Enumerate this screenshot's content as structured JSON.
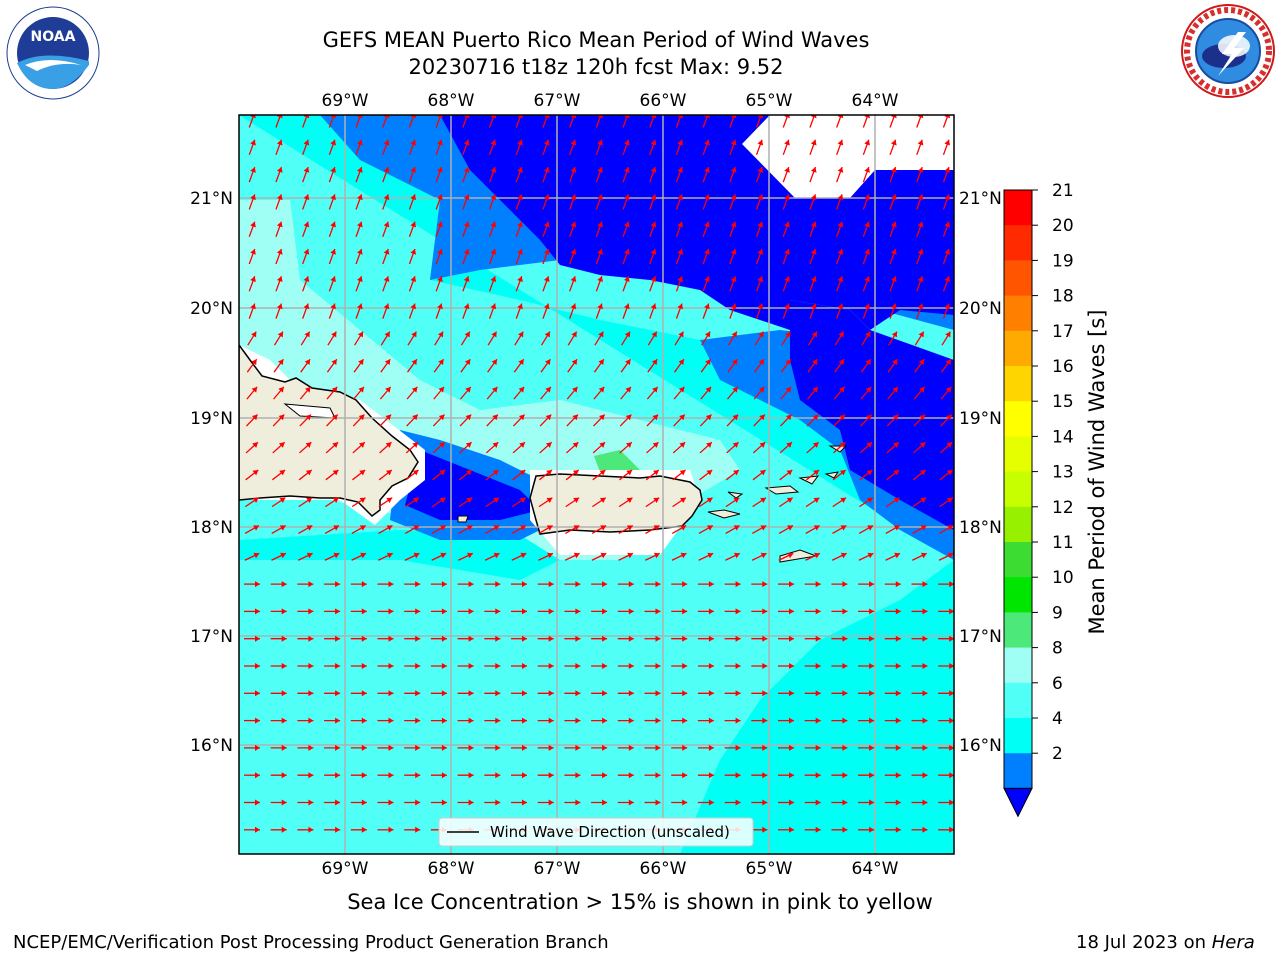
{
  "header": {
    "title_line1": "GEFS MEAN Puerto Rico Mean Period of Wind Waves",
    "title_line2": "20230716 t18z 120h fcst   Max: 9.52"
  },
  "logos": {
    "left_text": "NOAA",
    "right_text": "NATIONAL WEATHER SERVICE"
  },
  "map": {
    "lon_labels": [
      "69°W",
      "68°W",
      "67°W",
      "66°W",
      "65°W",
      "64°W"
    ],
    "lat_labels": [
      "21°N",
      "20°N",
      "19°N",
      "18°N",
      "17°N",
      "16°N"
    ],
    "legend_label": "Wind Wave Direction (unscaled)",
    "arrow_color": "#ff0000"
  },
  "colorbar": {
    "label": "Mean Period of Wind Waves [s]",
    "ticks": [
      "21",
      "20",
      "19",
      "18",
      "17",
      "16",
      "15",
      "14",
      "13",
      "12",
      "11",
      "10",
      "9",
      "8",
      "6",
      "4",
      "2"
    ],
    "colors": [
      "#ff0000",
      "#ff2a00",
      "#ff5500",
      "#ff8000",
      "#ffaa00",
      "#ffd500",
      "#ffff00",
      "#e6ff00",
      "#c8ff00",
      "#96f000",
      "#3cdc32",
      "#00e600",
      "#4ce87a",
      "#a0fff5",
      "#50fff5",
      "#00fff5",
      "#0080ff"
    ],
    "extend_color": "#0000ff"
  },
  "footer": {
    "note": "Sea Ice Concentration > 15% is shown in pink to yellow",
    "left": "NCEP/EMC/Verification Post Processing Product Generation Branch",
    "date": "18 Jul 2023 on ",
    "machine": "Hera"
  }
}
